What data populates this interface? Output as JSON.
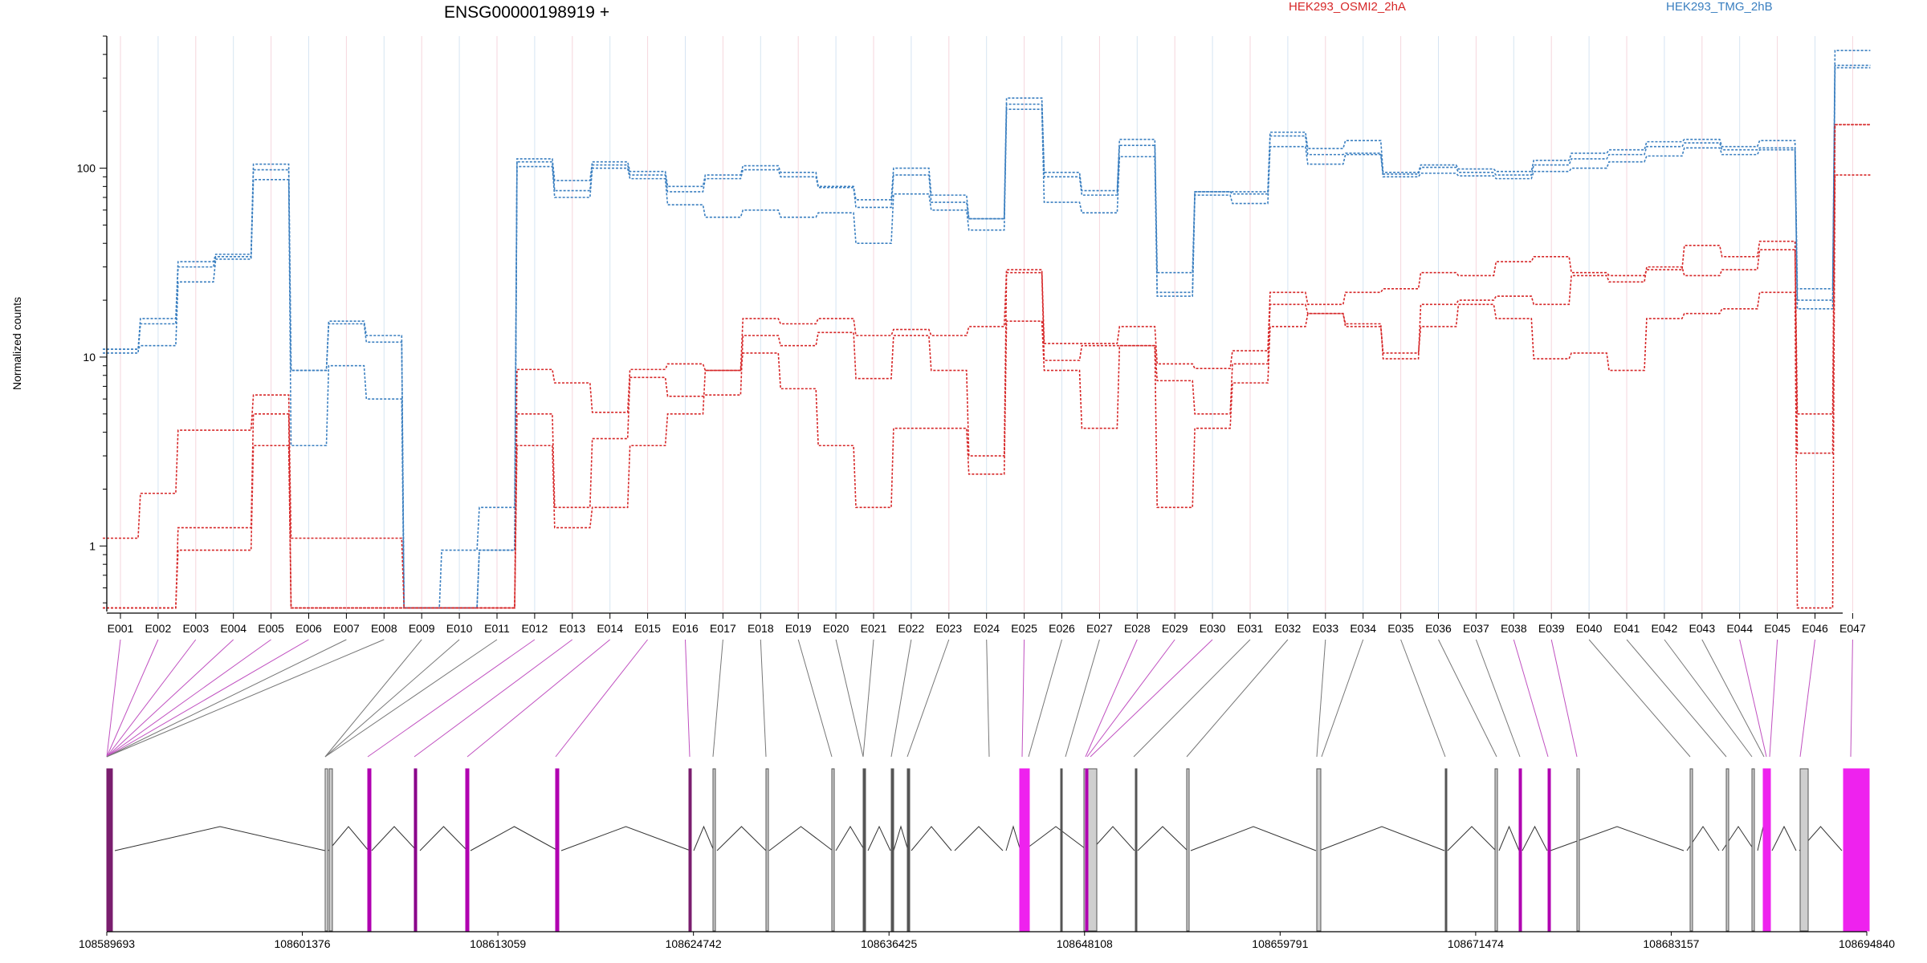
{
  "chart_data": {
    "type": "line",
    "title": "ENSG00000198919 +",
    "ylabel": "Normalized counts",
    "xlabel": "",
    "y_scale": "log",
    "ylim": [
      0.45,
      500
    ],
    "y_ticks": [
      "100",
      "10",
      "1"
    ],
    "y_tick_values": [
      100,
      10,
      1
    ],
    "grid": "vertical, light",
    "legend": [
      {
        "name": "HEK293_OSMI2_2hA",
        "color": "#d62728"
      },
      {
        "name": "HEK293_TMG_2hB",
        "color": "#3a7fc0"
      }
    ],
    "categories": [
      "E001",
      "E002",
      "E003",
      "E004",
      "E005",
      "E006",
      "E007",
      "E008",
      "E009",
      "E010",
      "E011",
      "E012",
      "E013",
      "E014",
      "E015",
      "E016",
      "E017",
      "E018",
      "E019",
      "E020",
      "E021",
      "E022",
      "E023",
      "E024",
      "E025",
      "E026",
      "E027",
      "E028",
      "E029",
      "E030",
      "E031",
      "E032",
      "E033",
      "E034",
      "E035",
      "E036",
      "E037",
      "E038",
      "E039",
      "E040",
      "E041",
      "E042",
      "E043",
      "E044",
      "E045",
      "E046",
      "E047"
    ],
    "series": [
      {
        "group": "HEK293_TMG_2hB",
        "color": "#3a7fc0",
        "values": [
          11,
          16,
          32,
          35,
          105,
          8.5,
          15.5,
          13,
          0.47,
          0.95,
          1.6,
          112,
          86,
          108,
          96,
          80,
          92,
          103,
          95,
          80,
          68,
          100,
          72,
          54,
          235,
          95,
          76,
          142,
          28,
          75,
          75,
          155,
          127,
          140,
          95,
          104,
          99,
          96,
          110,
          120,
          125,
          138,
          142,
          130,
          140,
          23,
          420
        ]
      },
      {
        "group": "HEK293_TMG_2hB",
        "color": "#3a7fc0",
        "values": [
          10.5,
          15,
          30,
          34,
          98,
          8.5,
          15,
          12,
          0.47,
          0.47,
          0.95,
          108,
          76,
          104,
          92,
          75,
          88,
          98,
          90,
          79,
          62,
          92,
          66,
          54,
          218,
          90,
          72,
          132,
          22,
          75,
          73,
          148,
          118,
          120,
          93,
          101,
          95,
          92,
          104,
          112,
          118,
          130,
          136,
          125,
          128,
          20,
          350
        ]
      },
      {
        "group": "HEK293_TMG_2hB",
        "color": "#3a7fc0",
        "values": [
          11,
          11.5,
          25,
          33,
          87,
          3.4,
          9,
          6,
          0.47,
          0.47,
          0.95,
          102,
          70,
          100,
          88,
          64,
          55,
          60,
          55,
          58,
          40,
          73,
          60,
          47,
          205,
          66,
          58,
          115,
          21,
          72,
          65,
          130,
          105,
          118,
          90,
          94,
          91,
          88,
          96,
          100,
          108,
          116,
          128,
          118,
          125,
          18,
          340
        ]
      },
      {
        "group": "HEK293_OSMI2_2hA",
        "color": "#d62728",
        "values": [
          1.1,
          1.9,
          4.1,
          4.1,
          6.3,
          1.1,
          1.1,
          1.1,
          0.47,
          0.47,
          0.47,
          8.6,
          7.3,
          5.1,
          8.6,
          9.2,
          8.5,
          16,
          15,
          16,
          13,
          14,
          13,
          14.5,
          29,
          11.8,
          11.8,
          14.5,
          9.2,
          8.7,
          10.8,
          22,
          19,
          22,
          23,
          28,
          27,
          32,
          34,
          28,
          27,
          29,
          39,
          34,
          41,
          5,
          170
        ]
      },
      {
        "group": "HEK293_OSMI2_2hA",
        "color": "#d62728",
        "values": [
          0.47,
          0.47,
          1.25,
          1.25,
          5.0,
          0.47,
          0.47,
          0.47,
          0.47,
          0.47,
          0.47,
          5.0,
          1.6,
          3.7,
          7.8,
          6.2,
          6.3,
          13,
          11.5,
          13.5,
          7.7,
          13,
          8.5,
          3.0,
          28,
          9.6,
          11.5,
          11.5,
          7.5,
          5.0,
          9.2,
          19,
          17,
          15,
          9.8,
          19,
          20,
          21,
          19,
          27,
          25,
          30,
          27,
          29,
          37,
          3.1,
          170
        ]
      },
      {
        "group": "HEK293_OSMI2_2hA",
        "color": "#d62728",
        "values": [
          0.47,
          0.47,
          0.95,
          0.95,
          3.4,
          0.47,
          0.47,
          0.47,
          0.47,
          0.47,
          0.47,
          3.4,
          1.25,
          1.6,
          3.4,
          5.0,
          8.5,
          10.5,
          6.8,
          3.4,
          1.6,
          4.2,
          4.2,
          2.4,
          15.5,
          8.5,
          4.2,
          11.5,
          1.6,
          4.2,
          7.3,
          14.5,
          17,
          14.5,
          10.5,
          14.5,
          19,
          16,
          9.8,
          10.5,
          8.5,
          16,
          17,
          18,
          22,
          0.47,
          92
        ]
      }
    ],
    "coordinate_ticks": [
      "108589693",
      "108601376",
      "108613059",
      "108624742",
      "108636425",
      "108648108",
      "108659791",
      "108671474",
      "108683157",
      "108694840"
    ],
    "highlight_color": "#ee22ee"
  }
}
